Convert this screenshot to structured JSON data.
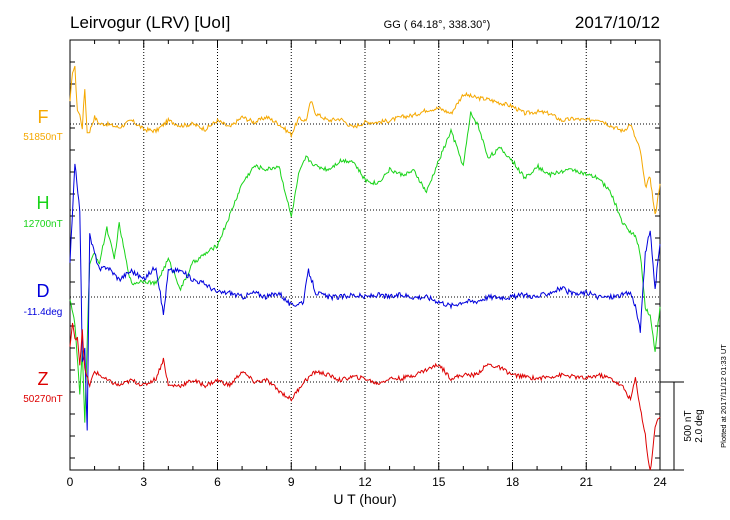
{
  "header": {
    "station": "Leirvogur (LRV)  [UoI]",
    "coords": "GG ( 64.18°, 338.30°)",
    "date": "2017/10/12"
  },
  "side_note": "Plotted at 2017/11/12 01:33 UT",
  "scale_label_1": "500 nT",
  "scale_label_2": "2.0 deg",
  "colors": {
    "F": "#f5a800",
    "H": "#19d419",
    "D": "#0000dd",
    "Z": "#dd0000",
    "axis": "#000000"
  },
  "chart_data": {
    "type": "line",
    "xlabel": "U T (hour)",
    "xlim": [
      0,
      24
    ],
    "x_ticks": [
      "0",
      "3",
      "6",
      "9",
      "12",
      "15",
      "18",
      "21",
      "24"
    ],
    "grid": "dotted vertical lines every 3 h, dotted baseline per component",
    "series": [
      {
        "name": "F",
        "baseline_label": "51850nT",
        "baseline": 51850,
        "unit": "nT",
        "x": [
          0,
          0.1,
          0.2,
          0.3,
          0.4,
          0.5,
          0.6,
          0.7,
          0.8,
          1.0,
          1.2,
          1.5,
          2.0,
          2.5,
          3.0,
          3.5,
          4.0,
          4.5,
          5.0,
          5.5,
          6.0,
          6.5,
          7.0,
          7.5,
          8.0,
          8.5,
          9.0,
          9.3,
          9.6,
          9.8,
          10.0,
          10.5,
          11.0,
          11.5,
          12.0,
          12.5,
          13.0,
          13.5,
          14.0,
          14.5,
          15.0,
          15.5,
          16.0,
          16.5,
          17.0,
          17.5,
          18.0,
          18.5,
          19.0,
          19.5,
          20.0,
          20.5,
          21.0,
          21.5,
          22.0,
          22.5,
          22.8,
          23.0,
          23.2,
          23.4,
          23.6,
          23.8,
          24.0
        ],
        "values": [
          120,
          300,
          320,
          80,
          50,
          -20,
          200,
          -50,
          -40,
          40,
          0,
          0,
          -20,
          20,
          -30,
          -40,
          20,
          -10,
          0,
          -30,
          20,
          -20,
          40,
          10,
          40,
          0,
          -60,
          30,
          20,
          130,
          60,
          20,
          30,
          -20,
          10,
          10,
          20,
          40,
          50,
          80,
          90,
          60,
          170,
          150,
          140,
          120,
          100,
          60,
          70,
          60,
          20,
          30,
          20,
          30,
          -10,
          -40,
          0,
          -80,
          -150,
          -360,
          -300,
          -520,
          -340
        ]
      },
      {
        "name": "H",
        "baseline_label": "12700nT",
        "baseline": 12700,
        "unit": "nT",
        "x": [
          0,
          0.2,
          0.4,
          0.5,
          0.6,
          0.7,
          0.8,
          1.0,
          1.2,
          1.5,
          1.8,
          2.0,
          2.3,
          2.5,
          3.0,
          3.5,
          4.0,
          4.5,
          5.0,
          5.5,
          6.0,
          6.5,
          7.0,
          7.5,
          8.0,
          8.5,
          9.0,
          9.3,
          9.6,
          10.0,
          10.5,
          11.0,
          11.5,
          12.0,
          12.5,
          13.0,
          13.5,
          14.0,
          14.5,
          15.0,
          15.5,
          16.0,
          16.3,
          16.6,
          17.0,
          17.5,
          18.0,
          18.5,
          19.0,
          19.5,
          20.0,
          20.5,
          21.0,
          21.5,
          22.0,
          22.5,
          23.0,
          23.2,
          23.4,
          23.6,
          23.8,
          24.0
        ],
        "values": [
          -500,
          -650,
          -1050,
          -800,
          -1200,
          -750,
          -300,
          -250,
          -300,
          -100,
          -280,
          -80,
          -300,
          -420,
          -400,
          -420,
          -280,
          -450,
          -300,
          -250,
          -200,
          -30,
          150,
          250,
          230,
          250,
          -40,
          200,
          300,
          250,
          230,
          280,
          280,
          170,
          150,
          230,
          200,
          220,
          100,
          280,
          450,
          250,
          550,
          480,
          300,
          350,
          280,
          180,
          250,
          200,
          220,
          230,
          200,
          180,
          100,
          -80,
          -150,
          -250,
          -550,
          -600,
          -800,
          -550
        ]
      },
      {
        "name": "D",
        "baseline_label": "-11.4deg",
        "baseline": -11.4,
        "unit": "deg",
        "x": [
          0,
          0.2,
          0.4,
          0.5,
          0.6,
          0.7,
          0.8,
          1.0,
          1.2,
          1.5,
          2.0,
          2.5,
          3.0,
          3.5,
          3.8,
          4.0,
          4.5,
          5.0,
          5.5,
          6.0,
          6.5,
          7.0,
          7.5,
          8.0,
          8.5,
          9.0,
          9.5,
          9.7,
          10.0,
          10.5,
          11.0,
          11.5,
          12.0,
          12.5,
          13.0,
          13.5,
          14.0,
          14.5,
          15.0,
          15.5,
          16.0,
          16.5,
          17.0,
          17.5,
          18.0,
          18.5,
          19.0,
          19.5,
          20.0,
          20.5,
          21.0,
          21.5,
          22.0,
          22.5,
          22.8,
          23.0,
          23.2,
          23.4,
          23.6,
          23.8,
          24.0
        ],
        "values": [
          0.8,
          3.0,
          2.0,
          -1.5,
          -1.2,
          -3.0,
          1.4,
          1.0,
          0.6,
          0.7,
          0.4,
          0.6,
          0.4,
          0.7,
          -0.4,
          0.6,
          0.6,
          0.4,
          0.3,
          0.1,
          0.1,
          0.0,
          0.1,
          0.0,
          0.1,
          -0.2,
          -0.1,
          0.6,
          0.1,
          0.0,
          0.0,
          0.05,
          0.0,
          0.05,
          0.0,
          0.05,
          0.0,
          0.0,
          -0.1,
          -0.2,
          -0.1,
          -0.1,
          0.0,
          0.0,
          0.0,
          0.05,
          0.0,
          0.1,
          0.2,
          0.05,
          0.1,
          0.0,
          0.0,
          0.05,
          0.1,
          -0.2,
          -0.8,
          1.0,
          1.5,
          0.2,
          1.2
        ]
      },
      {
        "name": "Z",
        "baseline_label": "50270nT",
        "baseline": 50270,
        "unit": "nT",
        "x": [
          0,
          0.1,
          0.2,
          0.3,
          0.4,
          0.5,
          0.6,
          0.8,
          1.0,
          1.5,
          2.0,
          2.5,
          3.0,
          3.5,
          3.8,
          4.0,
          4.5,
          5.0,
          5.5,
          6.0,
          6.5,
          7.0,
          7.5,
          8.0,
          8.5,
          9.0,
          9.5,
          10.0,
          10.5,
          11.0,
          11.5,
          12.0,
          12.5,
          13.0,
          13.5,
          14.0,
          14.5,
          15.0,
          15.5,
          16.0,
          16.5,
          17.0,
          17.5,
          18.0,
          18.5,
          19.0,
          19.5,
          20.0,
          20.5,
          21.0,
          21.5,
          22.0,
          22.5,
          22.8,
          23.0,
          23.2,
          23.4,
          23.6,
          23.8,
          24.0
        ],
        "values": [
          200,
          330,
          240,
          260,
          100,
          300,
          70,
          -20,
          60,
          10,
          -20,
          10,
          -20,
          20,
          130,
          -20,
          -20,
          10,
          -20,
          10,
          -20,
          60,
          0,
          10,
          -50,
          -100,
          0,
          60,
          40,
          10,
          30,
          20,
          -10,
          20,
          20,
          40,
          70,
          100,
          20,
          40,
          40,
          100,
          80,
          40,
          30,
          20,
          30,
          40,
          30,
          20,
          40,
          20,
          -30,
          -100,
          20,
          -150,
          -300,
          -530,
          -250,
          -200
        ]
      }
    ]
  }
}
